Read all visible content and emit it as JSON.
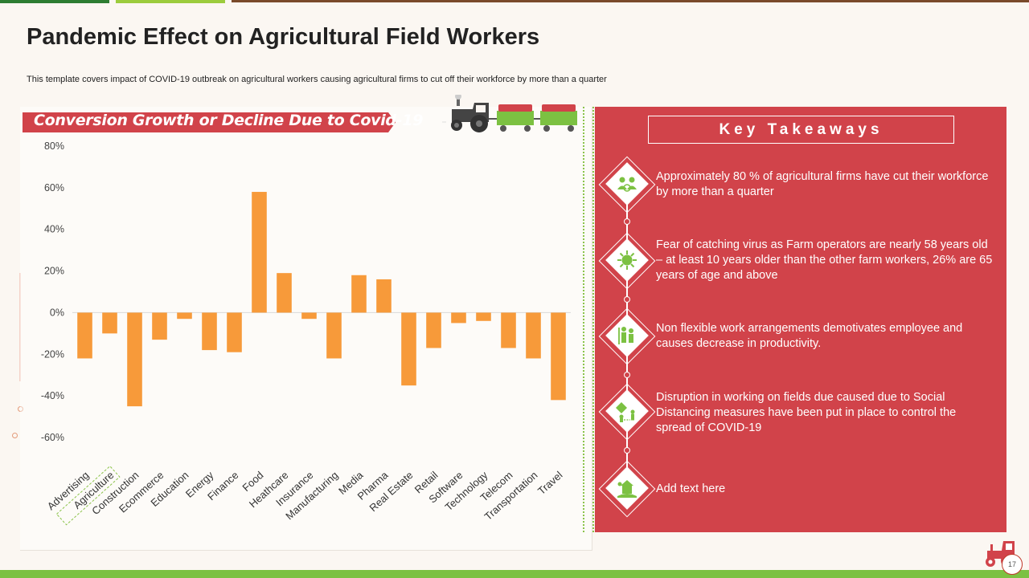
{
  "title": "Pandemic Effect on Agricultural Field Workers",
  "subtitle": "This template  covers impact of COVID-19  outbreak on agricultural workers causing agricultural firms to cut off their workforce by more than a quarter",
  "banner": "Conversion Growth or Decline Due to Covid-19",
  "page_number": "17",
  "colors": {
    "accent": "#d1434a",
    "bar": "#f79a3a",
    "green": "#7cc142",
    "text": "#222222"
  },
  "chart_data": {
    "type": "bar",
    "title": "Conversion Growth or Decline Due to Covid-19",
    "xlabel": "",
    "ylabel": "",
    "categories": [
      "Advertising",
      "Agriculture",
      "Construction",
      "Ecommerce",
      "Education",
      "Energy",
      "Finance",
      "Food",
      "Heathcare",
      "Insurance",
      "Manufacturing",
      "Media",
      "Pharma",
      "Real Estate",
      "Retail",
      "Software",
      "Technology",
      "Telecom",
      "Transportation",
      "Travel"
    ],
    "values": [
      -22,
      -10,
      -45,
      -13,
      -3,
      -18,
      -19,
      58,
      19,
      -3,
      -22,
      18,
      16,
      -35,
      -17,
      -5,
      -4,
      -17,
      -22,
      -42
    ],
    "yticks": [
      "80%",
      "60%",
      "40%",
      "20%",
      "0%",
      "-20%",
      "-40%",
      "-60%"
    ],
    "ylim": [
      -60,
      80
    ],
    "highlighted_category": "Agriculture",
    "grid": false
  },
  "takeaways": {
    "title": "Key Takeaways",
    "items": [
      {
        "icon": "workforce-icon",
        "text": "Approximately 80 % of agricultural firms have cut their workforce by more than a quarter"
      },
      {
        "icon": "virus-icon",
        "text": "Fear of catching virus as Farm operators are nearly 58 years old – at least 10 years older than the other farm workers, 26% are 65 years of age and above"
      },
      {
        "icon": "workers-icon",
        "text": "Non flexible work arrangements demotivates employee and causes decrease in  productivity."
      },
      {
        "icon": "social-distancing-icon",
        "text": "Disruption in working on fields due caused due to Social Distancing measures have been put in place to control the spread of COVID-19"
      },
      {
        "icon": "farm-icon",
        "text": "Add text here"
      }
    ]
  }
}
